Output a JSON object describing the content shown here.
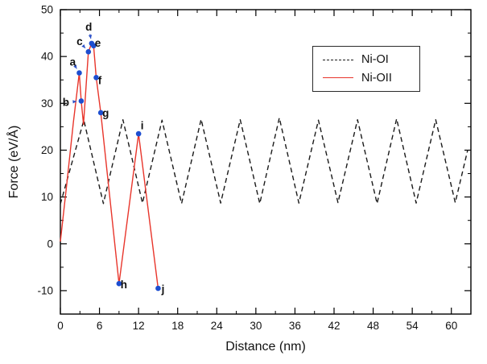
{
  "chart_data": {
    "type": "line",
    "title": "",
    "xlabel": "Distance (nm)",
    "ylabel": "Force (eV/Å)",
    "xlim": [
      0,
      63
    ],
    "ylim": [
      -15,
      50
    ],
    "xticks": [
      0,
      6,
      12,
      18,
      24,
      30,
      36,
      42,
      48,
      54,
      60
    ],
    "yticks": [
      -10,
      0,
      10,
      20,
      30,
      40,
      50
    ],
    "x_minor_step": 3,
    "y_minor_step": 5,
    "grid": "off",
    "frame_color": "#000000",
    "legend": {
      "position": "top-right",
      "entries": [
        {
          "label": "Ni-OI",
          "color": "#1a1a1a",
          "dash": true
        },
        {
          "label": "Ni-OII",
          "color": "#e8352b",
          "dash": false
        }
      ]
    },
    "series": [
      {
        "name": "Ni-OI",
        "style": "dashed",
        "color": "#1a1a1a",
        "points": [
          [
            0,
            8.5
          ],
          [
            3.6,
            26.4
          ],
          [
            6.6,
            8.6
          ],
          [
            9.6,
            26.5
          ],
          [
            12.6,
            8.7
          ],
          [
            15.6,
            26.4
          ],
          [
            18.6,
            8.6
          ],
          [
            21.6,
            26.6
          ],
          [
            24.6,
            8.7
          ],
          [
            27.6,
            26.5
          ],
          [
            30.6,
            8.6
          ],
          [
            33.6,
            26.9
          ],
          [
            36.6,
            8.7
          ],
          [
            39.6,
            26.4
          ],
          [
            42.6,
            8.8
          ],
          [
            45.6,
            26.5
          ],
          [
            48.6,
            8.6
          ],
          [
            51.6,
            26.7
          ],
          [
            54.6,
            8.7
          ],
          [
            57.6,
            26.5
          ],
          [
            60.6,
            8.8
          ],
          [
            62.5,
            20
          ]
        ]
      },
      {
        "name": "Ni-OII",
        "style": "solid",
        "color": "#e8352b",
        "points": [
          [
            0,
            0.5
          ],
          [
            1,
            13
          ],
          [
            2,
            26
          ],
          [
            2.9,
            36.5
          ],
          [
            3.2,
            30.5
          ],
          [
            3.55,
            25.5
          ],
          [
            4.3,
            41
          ],
          [
            4.8,
            42.8
          ],
          [
            5.1,
            42.3
          ],
          [
            5.5,
            35.5
          ],
          [
            6.2,
            28
          ],
          [
            9,
            -8.5
          ],
          [
            12,
            23.5
          ],
          [
            15,
            -9.5
          ]
        ]
      }
    ],
    "marker_color": "#1d4ed0",
    "annotation_color": "#2b50c8",
    "annotations": [
      {
        "label": "a",
        "x": 2.9,
        "y": 36.5,
        "lx": 1.9,
        "ly": 38.8,
        "arrow": true
      },
      {
        "label": "b",
        "x": 3.2,
        "y": 30.5,
        "lx": 0.85,
        "ly": 30.2,
        "arrow": true
      },
      {
        "label": "c",
        "x": 4.3,
        "y": 41.0,
        "lx": 2.95,
        "ly": 43.2,
        "arrow": true
      },
      {
        "label": "d",
        "x": 4.8,
        "y": 42.8,
        "lx": 4.35,
        "ly": 46.3,
        "arrow": true
      },
      {
        "label": "e",
        "x": 5.1,
        "y": 42.3,
        "lx": 5.75,
        "ly": 42.9,
        "arrow": false
      },
      {
        "label": "f",
        "x": 5.5,
        "y": 35.5,
        "lx": 6.05,
        "ly": 34.9,
        "arrow": false
      },
      {
        "label": "g",
        "x": 6.2,
        "y": 28.0,
        "lx": 6.95,
        "ly": 27.9,
        "arrow": false
      },
      {
        "label": "h",
        "x": 9.0,
        "y": -8.5,
        "lx": 9.75,
        "ly": -8.7,
        "arrow": false
      },
      {
        "label": "i",
        "x": 12.0,
        "y": 23.5,
        "lx": 12.55,
        "ly": 25.2,
        "arrow": false
      },
      {
        "label": "j",
        "x": 15.0,
        "y": -9.5,
        "lx": 15.75,
        "ly": -9.7,
        "arrow": false
      }
    ]
  }
}
